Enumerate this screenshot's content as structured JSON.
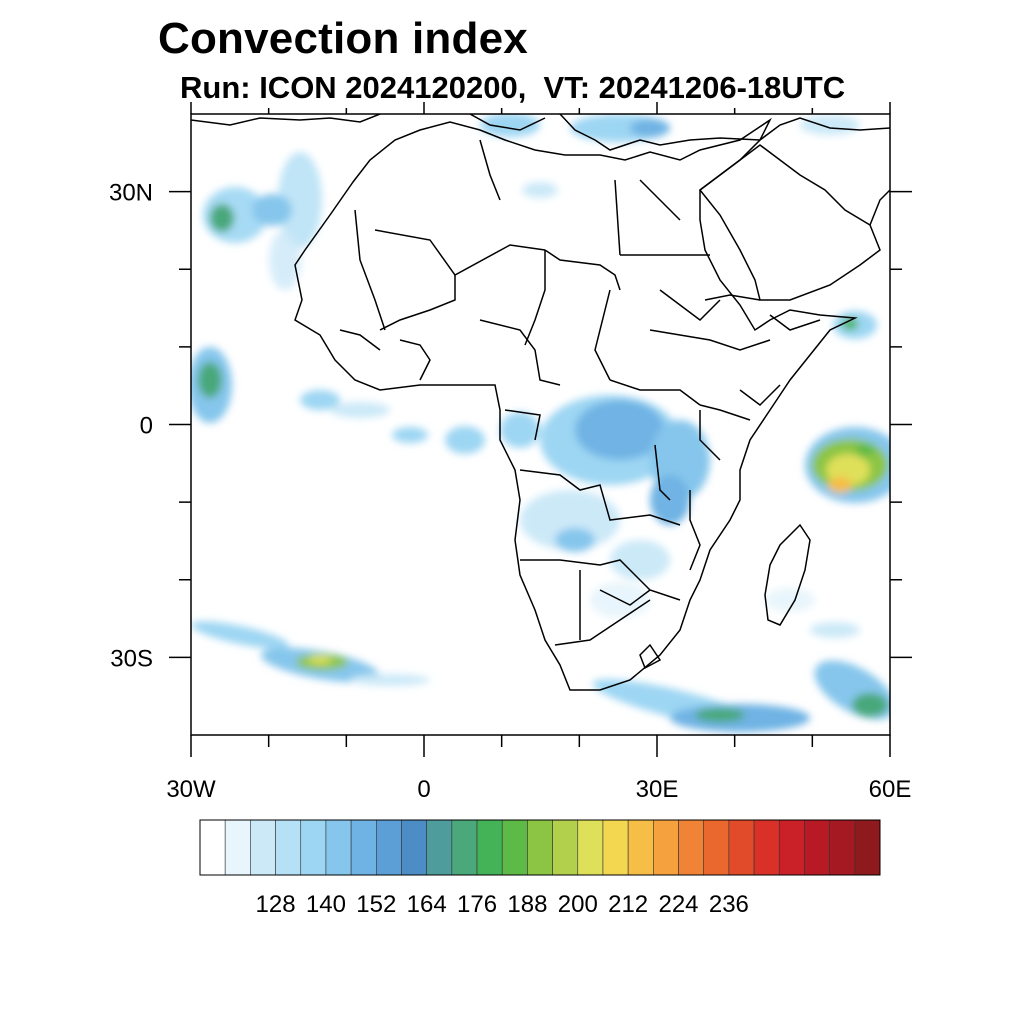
{
  "title": "Convection index",
  "subtitle": "Run: ICON 2024120200,  VT: 20241206-18UTC",
  "map": {
    "lon_range": [
      -30,
      60
    ],
    "lat_range": [
      -40,
      40
    ],
    "lon_ticks": [
      {
        "value": -30,
        "label": "30W"
      },
      {
        "value": 0,
        "label": "0"
      },
      {
        "value": 30,
        "label": "30E"
      },
      {
        "value": 60,
        "label": "60E"
      }
    ],
    "lat_ticks": [
      {
        "value": 30,
        "label": "30N"
      },
      {
        "value": 0,
        "label": "0"
      },
      {
        "value": -30,
        "label": "30S"
      }
    ],
    "minor_lon_ticks": [
      -20,
      -10,
      10,
      20,
      40,
      50
    ],
    "minor_lat_ticks": [
      20,
      10,
      -10,
      -20
    ]
  },
  "colorbar": {
    "labels": [
      "128",
      "140",
      "152",
      "164",
      "176",
      "188",
      "200",
      "212",
      "224",
      "236"
    ],
    "colors": [
      "#ffffff",
      "#e8f5fc",
      "#cce9f8",
      "#b5e0f6",
      "#9dd6f3",
      "#86c6ec",
      "#6fb3e4",
      "#5c9fd6",
      "#4d8dc6",
      "#4f9c9c",
      "#4aa87a",
      "#44b257",
      "#5eba47",
      "#8cc544",
      "#b3d04c",
      "#dfe05a",
      "#f3d751",
      "#f6bd47",
      "#f5a13e",
      "#f08335",
      "#ea672e",
      "#e24b2a",
      "#d93128",
      "#c92127",
      "#b81a25",
      "#a51922",
      "#8e1a1e"
    ],
    "n_labelled_offset": 2,
    "labelled_every": 2
  }
}
